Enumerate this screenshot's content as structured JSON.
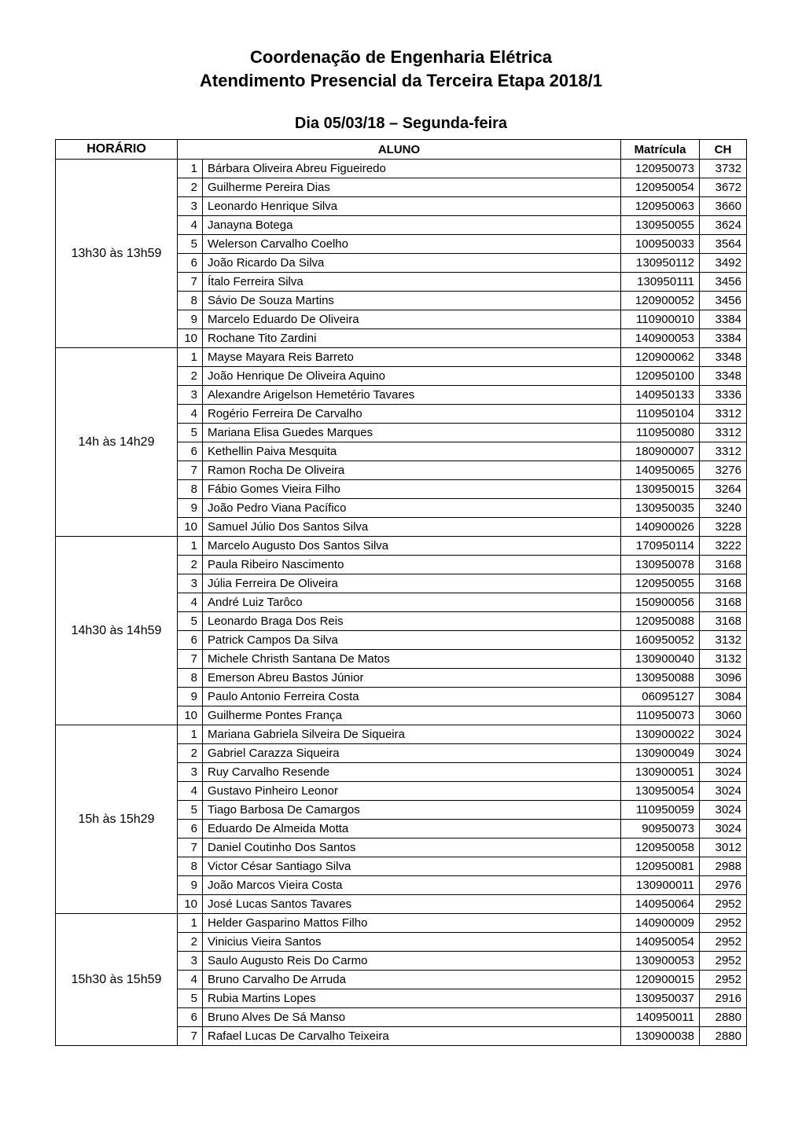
{
  "title_line1": "Coordenação de Engenharia Elétrica",
  "title_line2": "Atendimento Presencial da Terceira Etapa 2018/1",
  "subtitle": "Dia 05/03/18 – Segunda-feira",
  "headers": {
    "horario": "HORÁRIO",
    "aluno": "ALUNO",
    "matricula": "Matrícula",
    "ch": "CH"
  },
  "blocks": [
    {
      "horario": "13h30 às 13h59",
      "rows": [
        {
          "idx": 1,
          "name": "Bárbara Oliveira Abreu Figueiredo",
          "matricula": "120950073",
          "ch": 3732
        },
        {
          "idx": 2,
          "name": "Guilherme Pereira Dias",
          "matricula": "120950054",
          "ch": 3672
        },
        {
          "idx": 3,
          "name": "Leonardo Henrique Silva",
          "matricula": "120950063",
          "ch": 3660
        },
        {
          "idx": 4,
          "name": "Janayna Botega",
          "matricula": "130950055",
          "ch": 3624
        },
        {
          "idx": 5,
          "name": "Welerson Carvalho Coelho",
          "matricula": "100950033",
          "ch": 3564
        },
        {
          "idx": 6,
          "name": "João Ricardo Da Silva",
          "matricula": "130950112",
          "ch": 3492
        },
        {
          "idx": 7,
          "name": "Ítalo Ferreira Silva",
          "matricula": "130950111",
          "ch": 3456
        },
        {
          "idx": 8,
          "name": "Sávio De Souza Martins",
          "matricula": "120900052",
          "ch": 3456
        },
        {
          "idx": 9,
          "name": "Marcelo Eduardo De Oliveira",
          "matricula": "110900010",
          "ch": 3384
        },
        {
          "idx": 10,
          "name": "Rochane Tito Zardini",
          "matricula": "140900053",
          "ch": 3384
        }
      ]
    },
    {
      "horario": "14h às 14h29",
      "rows": [
        {
          "idx": 1,
          "name": "Mayse Mayara Reis Barreto",
          "matricula": "120900062",
          "ch": 3348
        },
        {
          "idx": 2,
          "name": "João Henrique De Oliveira Aquino",
          "matricula": "120950100",
          "ch": 3348
        },
        {
          "idx": 3,
          "name": "Alexandre Arigelson Hemetério Tavares",
          "matricula": "140950133",
          "ch": 3336
        },
        {
          "idx": 4,
          "name": "Rogério Ferreira De Carvalho",
          "matricula": "110950104",
          "ch": 3312
        },
        {
          "idx": 5,
          "name": "Mariana Elisa Guedes Marques",
          "matricula": "110950080",
          "ch": 3312
        },
        {
          "idx": 6,
          "name": "Kethellin Paiva Mesquita",
          "matricula": "180900007",
          "ch": 3312
        },
        {
          "idx": 7,
          "name": "Ramon Rocha De Oliveira",
          "matricula": "140950065",
          "ch": 3276
        },
        {
          "idx": 8,
          "name": "Fábio Gomes Vieira Filho",
          "matricula": "130950015",
          "ch": 3264
        },
        {
          "idx": 9,
          "name": "João Pedro Viana Pacífico",
          "matricula": "130950035",
          "ch": 3240
        },
        {
          "idx": 10,
          "name": "Samuel Júlio Dos Santos Silva",
          "matricula": "140900026",
          "ch": 3228
        }
      ]
    },
    {
      "horario": "14h30 às 14h59",
      "rows": [
        {
          "idx": 1,
          "name": "Marcelo Augusto Dos Santos Silva",
          "matricula": "170950114",
          "ch": 3222
        },
        {
          "idx": 2,
          "name": "Paula Ribeiro Nascimento",
          "matricula": "130950078",
          "ch": 3168
        },
        {
          "idx": 3,
          "name": "Júlia Ferreira De Oliveira",
          "matricula": "120950055",
          "ch": 3168
        },
        {
          "idx": 4,
          "name": "André Luiz Tarôco",
          "matricula": "150900056",
          "ch": 3168
        },
        {
          "idx": 5,
          "name": "Leonardo Braga Dos Reis",
          "matricula": "120950088",
          "ch": 3168
        },
        {
          "idx": 6,
          "name": "Patrick Campos Da Silva",
          "matricula": "160950052",
          "ch": 3132
        },
        {
          "idx": 7,
          "name": "Michele Christh Santana De Matos",
          "matricula": "130900040",
          "ch": 3132
        },
        {
          "idx": 8,
          "name": "Emerson Abreu Bastos Júnior",
          "matricula": "130950088",
          "ch": 3096
        },
        {
          "idx": 9,
          "name": "Paulo Antonio Ferreira Costa",
          "matricula": "06095127",
          "ch": 3084
        },
        {
          "idx": 10,
          "name": "Guilherme Pontes França",
          "matricula": "110950073",
          "ch": 3060
        }
      ]
    },
    {
      "horario": "15h às 15h29",
      "rows": [
        {
          "idx": 1,
          "name": "Mariana Gabriela Silveira De Siqueira",
          "matricula": "130900022",
          "ch": 3024
        },
        {
          "idx": 2,
          "name": "Gabriel Carazza Siqueira",
          "matricula": "130900049",
          "ch": 3024
        },
        {
          "idx": 3,
          "name": "Ruy Carvalho Resende",
          "matricula": "130900051",
          "ch": 3024
        },
        {
          "idx": 4,
          "name": "Gustavo Pinheiro Leonor",
          "matricula": "130950054",
          "ch": 3024
        },
        {
          "idx": 5,
          "name": "Tiago Barbosa De Camargos",
          "matricula": "110950059",
          "ch": 3024
        },
        {
          "idx": 6,
          "name": "Eduardo De Almeida Motta",
          "matricula": "90950073",
          "ch": 3024
        },
        {
          "idx": 7,
          "name": "Daniel Coutinho Dos Santos",
          "matricula": "120950058",
          "ch": 3012
        },
        {
          "idx": 8,
          "name": "Victor César Santiago Silva",
          "matricula": "120950081",
          "ch": 2988
        },
        {
          "idx": 9,
          "name": "João Marcos Vieira Costa",
          "matricula": "130900011",
          "ch": 2976
        },
        {
          "idx": 10,
          "name": "José Lucas Santos Tavares",
          "matricula": "140950064",
          "ch": 2952
        }
      ]
    },
    {
      "horario": "15h30 às 15h59",
      "rows": [
        {
          "idx": 1,
          "name": "Helder Gasparino Mattos Filho",
          "matricula": "140900009",
          "ch": 2952
        },
        {
          "idx": 2,
          "name": "Vinicius Vieira Santos",
          "matricula": "140950054",
          "ch": 2952
        },
        {
          "idx": 3,
          "name": "Saulo Augusto Reis Do Carmo",
          "matricula": "130900053",
          "ch": 2952
        },
        {
          "idx": 4,
          "name": "Bruno Carvalho De Arruda",
          "matricula": "120900015",
          "ch": 2952
        },
        {
          "idx": 5,
          "name": "Rubia Martins Lopes",
          "matricula": "130950037",
          "ch": 2916
        },
        {
          "idx": 6,
          "name": "Bruno Alves De Sá Manso",
          "matricula": "140950011",
          "ch": 2880
        },
        {
          "idx": 7,
          "name": "Rafael Lucas De Carvalho Teixeira",
          "matricula": "130900038",
          "ch": 2880
        }
      ]
    }
  ]
}
